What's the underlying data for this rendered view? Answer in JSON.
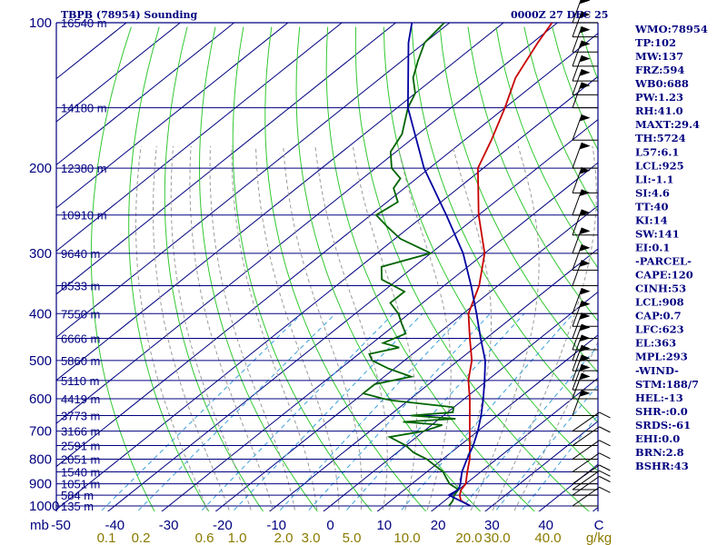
{
  "header": {
    "left": "TBPB (78954) Sounding",
    "right": "0000Z 27 DEC 25"
  },
  "indices": [
    "WMO:78954",
    "TP:102",
    "MW:137",
    "FRZ:594",
    "WB0:688",
    "PW:1.23",
    "RH:41.0",
    "MAXT:29.4",
    "TH:5724",
    "L57:6.1",
    "LCL:925",
    "LI:-1.1",
    "SI:4.6",
    "TT:40",
    "KI:14",
    "SW:141",
    "EI:0.1",
    "-PARCEL-",
    "CAPE:120",
    "CINH:53",
    "LCL:908",
    "CAP:0.7",
    "LFC:623",
    "EL:363",
    "MPL:293",
    "-WIND-",
    "STM:188/7",
    "HEL:-13",
    "SHR-:0.0",
    "SRDS:-61",
    "EHI:0.0",
    "BRN:2.8",
    "BSHR:43"
  ],
  "colors": {
    "isobar": "#000080",
    "isotherm": "#000080",
    "dry_adiabat": "#32c832",
    "moist_adiabat": "#9a9a9a",
    "mixing_ratio": "#3aa0dc",
    "temperature": "#c80000",
    "dewpoint": "#006400",
    "parcel": "#0000a0",
    "labels": "#000080",
    "mixing_labels": "#8a7a00"
  },
  "chart_data": {
    "type": "skew-t",
    "y_scale": "log-pressure",
    "ylim": [
      1000,
      100
    ],
    "xlim": [
      -50,
      50
    ],
    "pressure_levels": [
      100,
      200,
      300,
      400,
      500,
      600,
      700,
      800,
      900,
      1000
    ],
    "pressure_axis_unit": "mb",
    "temperature_ticks": [
      -50,
      -40,
      -30,
      -20,
      -10,
      0,
      10,
      20,
      30,
      40
    ],
    "mixing_ratio_labels": [
      "0.1",
      "0.2",
      "0.6",
      "1.0",
      "2.0",
      "3.0",
      "5.0",
      "10.0",
      "20.0",
      "30.0",
      "40.0"
    ],
    "mixing_ratio_unit": "g/kg",
    "height_labels": [
      {
        "p": 100,
        "label": "16540 m"
      },
      {
        "p": 150,
        "label": "14180 m"
      },
      {
        "p": 200,
        "label": "12380 m"
      },
      {
        "p": 250,
        "label": "10910 m"
      },
      {
        "p": 300,
        "label": "9640 m"
      },
      {
        "p": 350,
        "label": "8533 m"
      },
      {
        "p": 400,
        "label": "7550 m"
      },
      {
        "p": 450,
        "label": "6666 m"
      },
      {
        "p": 500,
        "label": "5860 m"
      },
      {
        "p": 550,
        "label": "5110 m"
      },
      {
        "p": 600,
        "label": "4419 m"
      },
      {
        "p": 650,
        "label": "3773 m"
      },
      {
        "p": 700,
        "label": "3166 m"
      },
      {
        "p": 750,
        "label": "2591 m"
      },
      {
        "p": 800,
        "label": "2051 m"
      },
      {
        "p": 850,
        "label": "1540 m"
      },
      {
        "p": 900,
        "label": "1051 m"
      },
      {
        "p": 950,
        "label": "584 m"
      },
      {
        "p": 1000,
        "label": "135 m"
      }
    ],
    "series": [
      {
        "points": [
          [
            1000,
            26
          ],
          [
            975,
            23
          ],
          [
            950,
            21.5
          ],
          [
            925,
            20.5
          ],
          [
            900,
            20
          ],
          [
            850,
            17.5
          ],
          [
            800,
            15
          ],
          [
            700,
            8.5
          ],
          [
            600,
            1
          ],
          [
            550,
            -3.5
          ],
          [
            500,
            -7.5
          ],
          [
            450,
            -13
          ],
          [
            400,
            -19
          ],
          [
            350,
            -23.5
          ],
          [
            300,
            -30
          ],
          [
            250,
            -40
          ],
          [
            200,
            -51
          ],
          [
            175,
            -55
          ],
          [
            150,
            -60
          ],
          [
            130,
            -65
          ],
          [
            110,
            -69
          ],
          [
            100,
            -71
          ]
        ]
      },
      {
        "points": [
          [
            1000,
            22
          ],
          [
            975,
            21.5
          ],
          [
            950,
            20.5
          ],
          [
            925,
            20
          ],
          [
            900,
            17
          ],
          [
            875,
            15
          ],
          [
            850,
            13
          ],
          [
            800,
            7
          ],
          [
            775,
            3
          ],
          [
            750,
            0
          ],
          [
            720,
            -5
          ],
          [
            700,
            0
          ],
          [
            680,
            2
          ],
          [
            670,
            -6
          ],
          [
            660,
            3
          ],
          [
            650,
            -6
          ],
          [
            640,
            1
          ],
          [
            625,
            0
          ],
          [
            620,
            -3
          ],
          [
            605,
            -13
          ],
          [
            600,
            -15
          ],
          [
            585,
            -20
          ],
          [
            560,
            -20
          ],
          [
            540,
            -15
          ],
          [
            520,
            -21
          ],
          [
            500,
            -26
          ],
          [
            485,
            -28
          ],
          [
            470,
            -24
          ],
          [
            460,
            -28
          ],
          [
            440,
            -26
          ],
          [
            420,
            -29
          ],
          [
            400,
            -32
          ],
          [
            380,
            -36
          ],
          [
            360,
            -36
          ],
          [
            340,
            -43
          ],
          [
            320,
            -46
          ],
          [
            300,
            -40
          ],
          [
            280,
            -49
          ],
          [
            265,
            -54
          ],
          [
            250,
            -59
          ],
          [
            235,
            -58
          ],
          [
            220,
            -62
          ],
          [
            210,
            -63
          ],
          [
            200,
            -67
          ],
          [
            185,
            -71
          ],
          [
            170,
            -73
          ],
          [
            150,
            -78
          ],
          [
            140,
            -80
          ],
          [
            130,
            -84
          ],
          [
            120,
            -87
          ],
          [
            110,
            -90
          ],
          [
            100,
            -91
          ]
        ]
      },
      {
        "points": [
          [
            1000,
            26
          ],
          [
            950,
            19.5
          ],
          [
            925,
            20
          ],
          [
            900,
            19
          ],
          [
            850,
            16.5
          ],
          [
            800,
            14.5
          ],
          [
            750,
            12.5
          ],
          [
            700,
            10
          ],
          [
            650,
            7
          ],
          [
            600,
            3.5
          ],
          [
            550,
            -0.5
          ],
          [
            500,
            -5
          ],
          [
            450,
            -11
          ],
          [
            400,
            -17.5
          ],
          [
            350,
            -25
          ],
          [
            300,
            -34
          ],
          [
            250,
            -46
          ],
          [
            200,
            -61
          ],
          [
            150,
            -78
          ],
          [
            110,
            -93
          ],
          [
            100,
            -97
          ]
        ]
      }
    ]
  }
}
